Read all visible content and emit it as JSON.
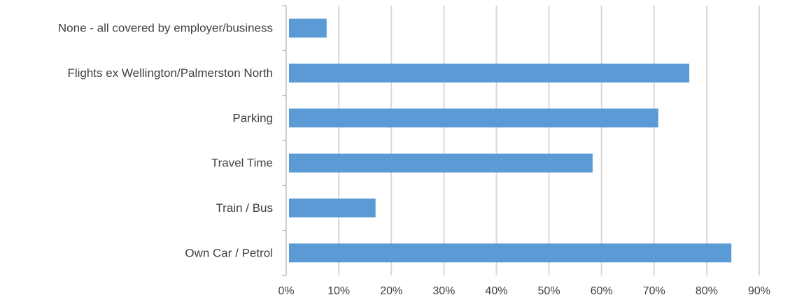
{
  "chart_data": {
    "type": "bar",
    "orientation": "horizontal",
    "title": "",
    "xlabel": "",
    "ylabel": "",
    "categories": [
      "None - all covered by employer/business",
      "Flights ex Wellington/Palmerston North",
      "Parking",
      "Travel Time",
      "Train / Bus",
      "Own Car / Petrol"
    ],
    "values": [
      0.077,
      0.767,
      0.708,
      0.583,
      0.17,
      0.847
    ],
    "xlim": [
      0,
      0.9
    ],
    "x_ticks": [
      0,
      0.1,
      0.2,
      0.3,
      0.4,
      0.5,
      0.6,
      0.7,
      0.8,
      0.9
    ],
    "x_tick_labels": [
      "0%",
      "10%",
      "20%",
      "30%",
      "40%",
      "50%",
      "60%",
      "70%",
      "80%",
      "90%"
    ],
    "grid": "vertical",
    "legend": "none",
    "bar_color": "#5b9bd5"
  }
}
